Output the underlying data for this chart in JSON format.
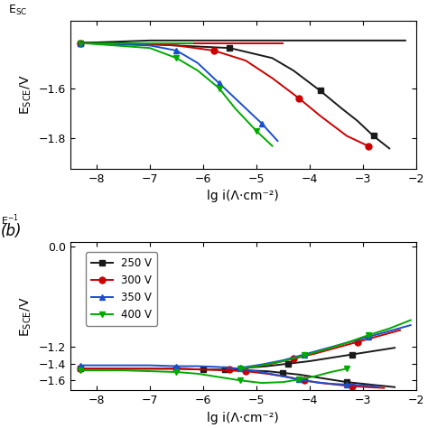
{
  "xlabel": "lg i(Λ·cm⁻²)",
  "ylabel": "E$_{SCE}$/V",
  "legend_labels": [
    "250 V",
    "300 V",
    "350 V",
    "400 V"
  ],
  "colors": [
    "#1a1a1a",
    "#cc0000",
    "#1a4fcc",
    "#00aa00"
  ],
  "markers": [
    "s",
    "o",
    "^",
    "v"
  ],
  "markersize": 5,
  "linewidth": 1.4,
  "panel_a": {
    "xlim": [
      -8.5,
      -2.0
    ],
    "ylim": [
      -1.92,
      -1.33
    ],
    "yticks": [
      -1.6,
      -1.8
    ],
    "xticks": [
      -8,
      -7,
      -6,
      -5,
      -4,
      -3,
      -2
    ],
    "curves": {
      "250V": {
        "x": [
          -8.3,
          -7.5,
          -6.5,
          -5.5,
          -4.7,
          -4.3,
          -3.8,
          -3.4,
          -3.1,
          -2.8,
          -2.5
        ],
        "y": [
          -1.42,
          -1.42,
          -1.43,
          -1.44,
          -1.48,
          -1.53,
          -1.61,
          -1.68,
          -1.73,
          -1.79,
          -1.84
        ],
        "anodic_x": [
          -8.3,
          -7.0,
          -6.0,
          -5.0,
          -4.0,
          -3.0,
          -2.2
        ],
        "anodic_y": [
          -1.42,
          -1.41,
          -1.41,
          -1.41,
          -1.41,
          -1.41,
          -1.41
        ]
      },
      "300V": {
        "x": [
          -8.3,
          -7.5,
          -6.5,
          -5.8,
          -5.2,
          -4.7,
          -4.2,
          -3.8,
          -3.3,
          -2.9
        ],
        "y": [
          -1.42,
          -1.42,
          -1.43,
          -1.45,
          -1.49,
          -1.56,
          -1.64,
          -1.71,
          -1.79,
          -1.83
        ]
      },
      "350V": {
        "x": [
          -8.3,
          -7.0,
          -6.5,
          -6.1,
          -5.7,
          -5.3,
          -4.9,
          -4.6
        ],
        "y": [
          -1.42,
          -1.43,
          -1.45,
          -1.5,
          -1.58,
          -1.66,
          -1.74,
          -1.81
        ]
      },
      "400V": {
        "x": [
          -8.3,
          -7.0,
          -6.5,
          -6.1,
          -5.7,
          -5.4,
          -5.0,
          -4.7
        ],
        "y": [
          -1.42,
          -1.44,
          -1.48,
          -1.53,
          -1.6,
          -1.68,
          -1.77,
          -1.83
        ]
      }
    }
  },
  "panel_b": {
    "xlim": [
      -8.5,
      -2.0
    ],
    "ylim": [
      -1.72,
      0.05
    ],
    "yticks": [
      0,
      -1.2,
      -1.4,
      -1.6
    ],
    "xticks": [
      -8,
      -7,
      -6,
      -5,
      -4,
      -3,
      -2
    ],
    "curves": {
      "250V": {
        "cat_x": [
          -8.3,
          -7.5,
          -7.0,
          -6.5,
          -6.0,
          -5.6,
          -5.2,
          -4.8,
          -4.5,
          -4.2,
          -3.9,
          -3.6,
          -3.3,
          -3.0,
          -2.7,
          -2.4
        ],
        "cat_y": [
          -1.46,
          -1.46,
          -1.46,
          -1.46,
          -1.47,
          -1.47,
          -1.48,
          -1.49,
          -1.51,
          -1.53,
          -1.56,
          -1.59,
          -1.62,
          -1.64,
          -1.66,
          -1.68
        ],
        "ano_x": [
          -5.6,
          -5.2,
          -4.8,
          -4.4,
          -4.0,
          -3.6,
          -3.2,
          -2.8,
          -2.4
        ],
        "ano_y": [
          -1.47,
          -1.45,
          -1.43,
          -1.4,
          -1.37,
          -1.33,
          -1.29,
          -1.25,
          -1.21
        ]
      },
      "300V": {
        "cat_x": [
          -8.3,
          -7.5,
          -7.0,
          -6.5,
          -6.0,
          -5.6,
          -5.2,
          -4.8,
          -4.4,
          -4.1,
          -3.8,
          -3.5,
          -3.2,
          -2.9,
          -2.6
        ],
        "cat_y": [
          -1.46,
          -1.46,
          -1.46,
          -1.46,
          -1.47,
          -1.48,
          -1.49,
          -1.52,
          -1.56,
          -1.6,
          -1.63,
          -1.65,
          -1.67,
          -1.68,
          -1.69
        ],
        "ano_x": [
          -5.5,
          -5.1,
          -4.7,
          -4.3,
          -3.9,
          -3.5,
          -3.1,
          -2.7,
          -2.3
        ],
        "ano_y": [
          -1.47,
          -1.44,
          -1.4,
          -1.34,
          -1.28,
          -1.21,
          -1.14,
          -1.07,
          -1.0
        ]
      },
      "350V": {
        "cat_x": [
          -8.3,
          -7.5,
          -7.0,
          -6.5,
          -6.1,
          -5.7,
          -5.3,
          -4.9,
          -4.5,
          -4.2,
          -3.9,
          -3.6,
          -3.3,
          -3.0,
          -2.7
        ],
        "cat_y": [
          -1.42,
          -1.42,
          -1.42,
          -1.43,
          -1.43,
          -1.44,
          -1.46,
          -1.5,
          -1.55,
          -1.59,
          -1.62,
          -1.64,
          -1.65,
          -1.66,
          -1.67
        ],
        "ano_x": [
          -5.3,
          -4.9,
          -4.5,
          -4.1,
          -3.7,
          -3.3,
          -2.9,
          -2.5,
          -2.1
        ],
        "ano_y": [
          -1.45,
          -1.41,
          -1.36,
          -1.29,
          -1.22,
          -1.15,
          -1.08,
          -1.01,
          -0.94
        ]
      },
      "400V": {
        "cat_x": [
          -8.3,
          -7.5,
          -7.0,
          -6.5,
          -6.1,
          -5.7,
          -5.3,
          -4.9,
          -4.5,
          -4.2,
          -3.9,
          -3.6,
          -3.3
        ],
        "cat_y": [
          -1.48,
          -1.48,
          -1.49,
          -1.5,
          -1.52,
          -1.56,
          -1.6,
          -1.63,
          -1.62,
          -1.59,
          -1.55,
          -1.5,
          -1.46
        ],
        "ano_x": [
          -5.3,
          -4.9,
          -4.5,
          -4.1,
          -3.7,
          -3.3,
          -2.9,
          -2.5,
          -2.1
        ],
        "ano_y": [
          -1.46,
          -1.42,
          -1.37,
          -1.3,
          -1.23,
          -1.15,
          -1.06,
          -0.98,
          -0.88
        ]
      }
    }
  }
}
